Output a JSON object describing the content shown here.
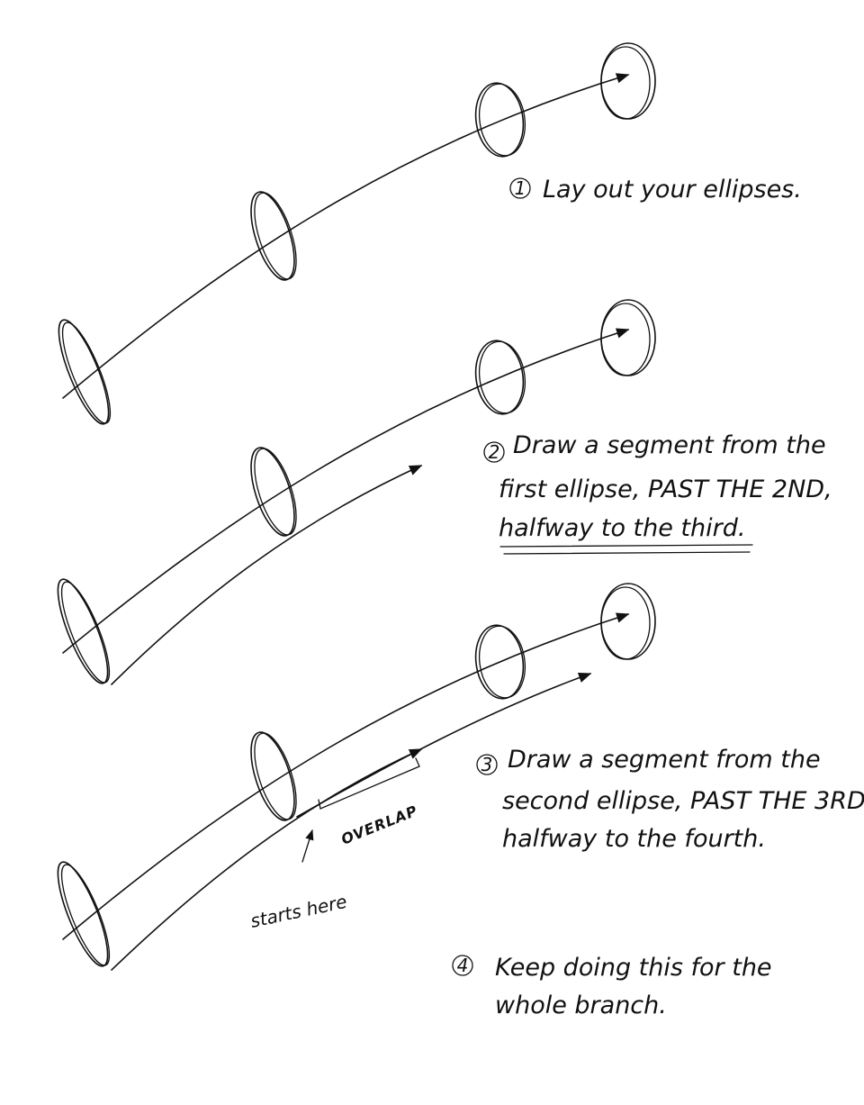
{
  "steps": [
    {
      "number": "1",
      "lines": [
        "Lay out your ellipses."
      ]
    },
    {
      "number": "2",
      "lines": [
        "Draw a segment from the",
        "first ellipse, PAST THE 2ND,",
        "halfway to the third."
      ]
    },
    {
      "number": "3",
      "lines": [
        "Draw a segment from the",
        "second ellipse, PAST THE 3RD,",
        "halfway to the fourth."
      ]
    },
    {
      "number": "4",
      "lines": [
        "Keep doing this for the",
        "whole branch."
      ]
    }
  ],
  "annotations": {
    "overlap": "OVERLAP",
    "starts_here": "starts here"
  },
  "ink_color": "#111111"
}
